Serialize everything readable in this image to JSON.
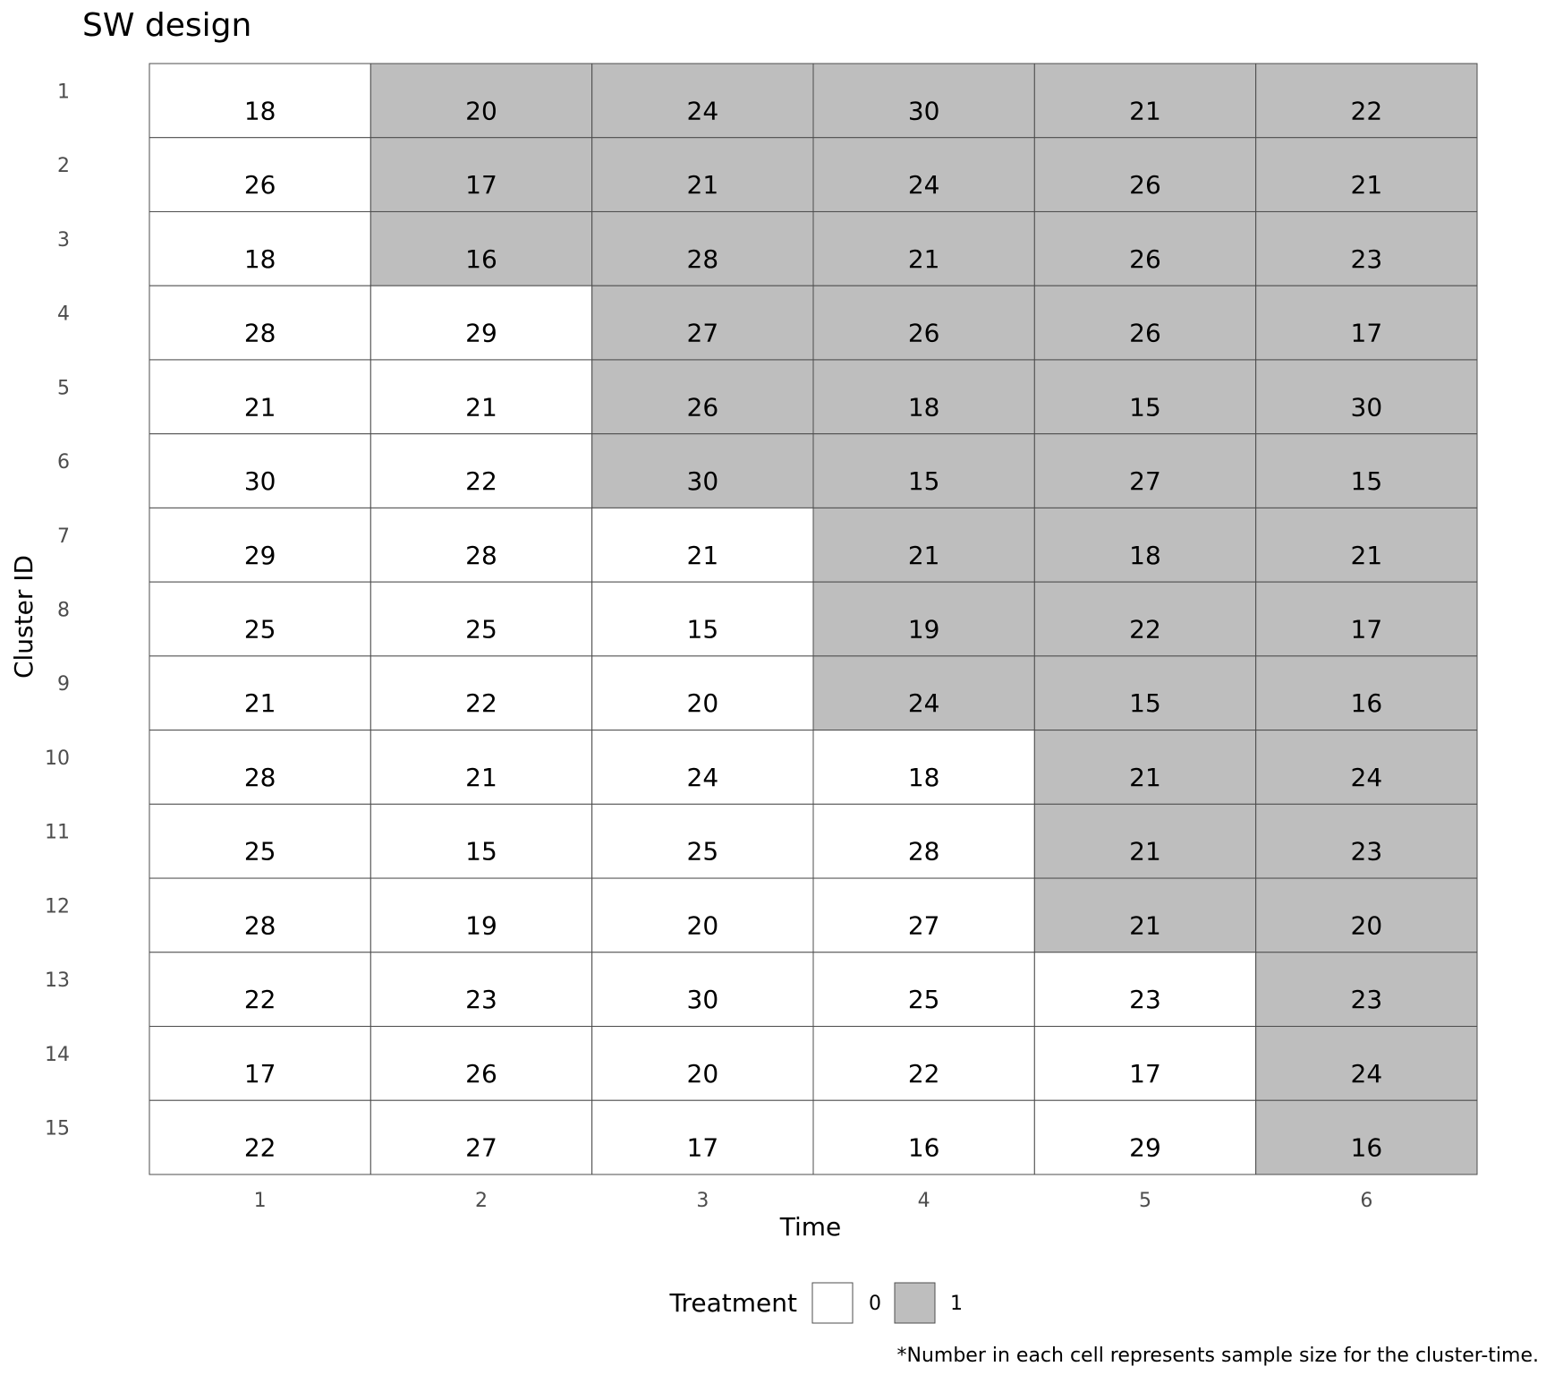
{
  "chart_data": {
    "type": "heatmap",
    "title": "SW design",
    "xlabel": "Time",
    "ylabel": "Cluster ID",
    "x": [
      "1",
      "2",
      "3",
      "4",
      "5",
      "6"
    ],
    "y": [
      "1",
      "2",
      "3",
      "4",
      "5",
      "6",
      "7",
      "8",
      "9",
      "10",
      "11",
      "12",
      "13",
      "14",
      "15"
    ],
    "values": [
      [
        18,
        20,
        24,
        30,
        21,
        22
      ],
      [
        26,
        17,
        21,
        24,
        26,
        21
      ],
      [
        18,
        16,
        28,
        21,
        26,
        23
      ],
      [
        28,
        29,
        27,
        26,
        26,
        17
      ],
      [
        21,
        21,
        26,
        18,
        15,
        30
      ],
      [
        30,
        22,
        30,
        15,
        27,
        15
      ],
      [
        29,
        28,
        21,
        21,
        18,
        21
      ],
      [
        25,
        25,
        15,
        19,
        22,
        17
      ],
      [
        21,
        22,
        20,
        24,
        15,
        16
      ],
      [
        28,
        21,
        24,
        18,
        21,
        24
      ],
      [
        25,
        15,
        25,
        28,
        21,
        23
      ],
      [
        28,
        19,
        20,
        27,
        21,
        20
      ],
      [
        22,
        23,
        30,
        25,
        23,
        23
      ],
      [
        17,
        26,
        20,
        22,
        17,
        24
      ],
      [
        22,
        27,
        17,
        16,
        29,
        16
      ]
    ],
    "treatment": [
      [
        0,
        1,
        1,
        1,
        1,
        1
      ],
      [
        0,
        1,
        1,
        1,
        1,
        1
      ],
      [
        0,
        1,
        1,
        1,
        1,
        1
      ],
      [
        0,
        0,
        1,
        1,
        1,
        1
      ],
      [
        0,
        0,
        1,
        1,
        1,
        1
      ],
      [
        0,
        0,
        1,
        1,
        1,
        1
      ],
      [
        0,
        0,
        0,
        1,
        1,
        1
      ],
      [
        0,
        0,
        0,
        1,
        1,
        1
      ],
      [
        0,
        0,
        0,
        1,
        1,
        1
      ],
      [
        0,
        0,
        0,
        0,
        1,
        1
      ],
      [
        0,
        0,
        0,
        0,
        1,
        1
      ],
      [
        0,
        0,
        0,
        0,
        1,
        1
      ],
      [
        0,
        0,
        0,
        0,
        0,
        1
      ],
      [
        0,
        0,
        0,
        0,
        0,
        1
      ],
      [
        0,
        0,
        0,
        0,
        0,
        1
      ]
    ],
    "legend": {
      "title": "Treatment",
      "placement": "bottom",
      "items": [
        {
          "label": "0",
          "color": "#ffffff"
        },
        {
          "label": "1",
          "color": "#bebebe"
        }
      ]
    },
    "caption": "*Number in each cell represents sample size for the cluster-time.",
    "grid": false
  },
  "colors": {
    "control": "#ffffff",
    "treated": "#bebebe",
    "border": "#4d4d4d",
    "text": "#000000",
    "tick": "#4d4d4d"
  }
}
